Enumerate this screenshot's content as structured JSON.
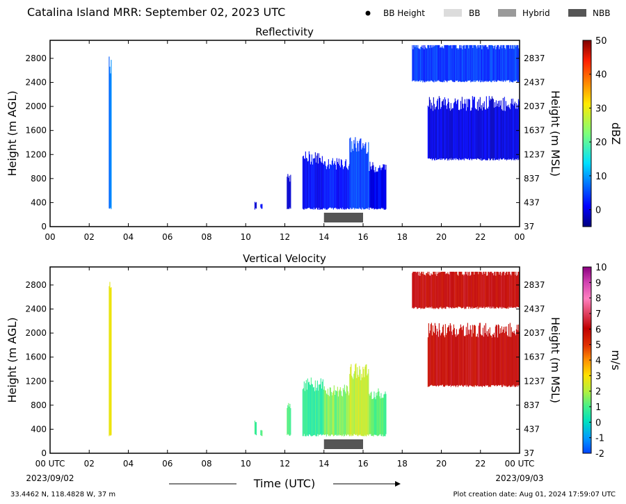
{
  "header": {
    "title": "Catalina Island MRR:  September 02, 2023 UTC"
  },
  "legend": [
    {
      "label": "BB Height",
      "symbol": "dot",
      "color": "#000000"
    },
    {
      "label": "BB",
      "symbol": "swatch",
      "color": "#dcdcdc"
    },
    {
      "label": "Hybrid",
      "symbol": "swatch",
      "color": "#9a9a9a"
    },
    {
      "label": "NBB",
      "symbol": "swatch",
      "color": "#555555"
    }
  ],
  "footer": {
    "location": "33.4462 N, 118.4828 W, 37 m",
    "creation": "Plot creation date: Aug 01, 2024 17:59:07 UTC",
    "start_date": "2023/09/02",
    "end_date": "2023/09/03"
  },
  "chart_data": [
    {
      "type": "heatmap",
      "title": "Reflectivity",
      "xlabel": "",
      "ylabel": "Height (m AGL)",
      "ylabel_right": "Height (m MSL)",
      "x_ticks": [
        "00",
        "02",
        "04",
        "06",
        "08",
        "10",
        "12",
        "14",
        "16",
        "18",
        "20",
        "22",
        "00"
      ],
      "xlim": [
        0,
        24
      ],
      "ylim": [
        0,
        3100
      ],
      "y_ticks": [
        0,
        400,
        800,
        1200,
        1600,
        2000,
        2400,
        2800
      ],
      "y_ticks_right": [
        37,
        437,
        837,
        1237,
        1637,
        2037,
        2437,
        2837
      ],
      "colorbar": {
        "label": "dBZ",
        "range": [
          -5,
          50
        ],
        "ticks": [
          0,
          10,
          20,
          30,
          40,
          50
        ],
        "colormap": "jet"
      },
      "nbb_bar": {
        "start": 14.0,
        "end": 16.0,
        "color": "#555555"
      },
      "echo_regions": [
        {
          "x_start": 3.0,
          "x_end": 3.15,
          "y_bottom": 280,
          "y_top": 2700,
          "value": 8
        },
        {
          "x_start": 10.45,
          "x_end": 10.55,
          "y_bottom": 280,
          "y_top": 400,
          "value": 0
        },
        {
          "x_start": 10.75,
          "x_end": 10.85,
          "y_bottom": 280,
          "y_top": 380,
          "value": 0
        },
        {
          "x_start": 12.1,
          "x_end": 12.3,
          "y_bottom": 280,
          "y_top": 780,
          "value": 0
        },
        {
          "x_start": 12.9,
          "x_end": 14.0,
          "y_bottom": 280,
          "y_top": 1100,
          "value": 1
        },
        {
          "x_start": 14.0,
          "x_end": 15.3,
          "y_bottom": 280,
          "y_top": 1000,
          "value": 2
        },
        {
          "x_start": 15.3,
          "x_end": 16.3,
          "y_bottom": 280,
          "y_top": 1300,
          "value": 5
        },
        {
          "x_start": 16.3,
          "x_end": 17.2,
          "y_bottom": 280,
          "y_top": 950,
          "value": 1
        },
        {
          "x_start": 18.5,
          "x_end": 24.0,
          "y_bottom": 2400,
          "y_top": 3000,
          "value": 4
        },
        {
          "x_start": 19.3,
          "x_end": 24.0,
          "y_bottom": 1100,
          "y_top": 2000,
          "value": 0
        }
      ]
    },
    {
      "type": "heatmap",
      "title": "Vertical Velocity",
      "xlabel": "Time (UTC)",
      "ylabel": "Height (m AGL)",
      "ylabel_right": "Height (m MSL)",
      "x_ticks": [
        "00 UTC",
        "02",
        "04",
        "06",
        "08",
        "10",
        "12",
        "14",
        "16",
        "18",
        "20",
        "22",
        "00 UTC"
      ],
      "xlim": [
        0,
        24
      ],
      "ylim": [
        0,
        3100
      ],
      "y_ticks": [
        0,
        400,
        800,
        1200,
        1600,
        2000,
        2400,
        2800
      ],
      "y_ticks_right": [
        37,
        437,
        837,
        1237,
        1637,
        2037,
        2437,
        2837
      ],
      "colorbar": {
        "label": "m/s",
        "range": [
          -2,
          10
        ],
        "ticks": [
          -2,
          -1,
          0,
          1,
          2,
          3,
          4,
          5,
          6,
          7,
          8,
          9,
          10
        ],
        "colormap": "velocity"
      },
      "nbb_bar": {
        "start": 14.0,
        "end": 16.0,
        "color": "#555555"
      },
      "echo_regions": [
        {
          "x_start": 3.0,
          "x_end": 3.15,
          "y_bottom": 280,
          "y_top": 2700,
          "value": 3
        },
        {
          "x_start": 10.45,
          "x_end": 10.55,
          "y_bottom": 280,
          "y_top": 500,
          "value": 1
        },
        {
          "x_start": 10.75,
          "x_end": 10.85,
          "y_bottom": 280,
          "y_top": 380,
          "value": 1
        },
        {
          "x_start": 12.1,
          "x_end": 12.3,
          "y_bottom": 280,
          "y_top": 780,
          "value": 1
        },
        {
          "x_start": 12.9,
          "x_end": 14.0,
          "y_bottom": 280,
          "y_top": 1100,
          "value": 0.7
        },
        {
          "x_start": 14.0,
          "x_end": 15.3,
          "y_bottom": 280,
          "y_top": 1000,
          "value": 1.5
        },
        {
          "x_start": 15.3,
          "x_end": 16.3,
          "y_bottom": 280,
          "y_top": 1300,
          "value": 2.2
        },
        {
          "x_start": 16.3,
          "x_end": 17.2,
          "y_bottom": 280,
          "y_top": 950,
          "value": 1.2
        },
        {
          "x_start": 18.5,
          "x_end": 24.0,
          "y_bottom": 2400,
          "y_top": 3000,
          "value": 6
        },
        {
          "x_start": 19.3,
          "x_end": 24.0,
          "y_bottom": 1100,
          "y_top": 2000,
          "value": 6
        }
      ]
    }
  ]
}
